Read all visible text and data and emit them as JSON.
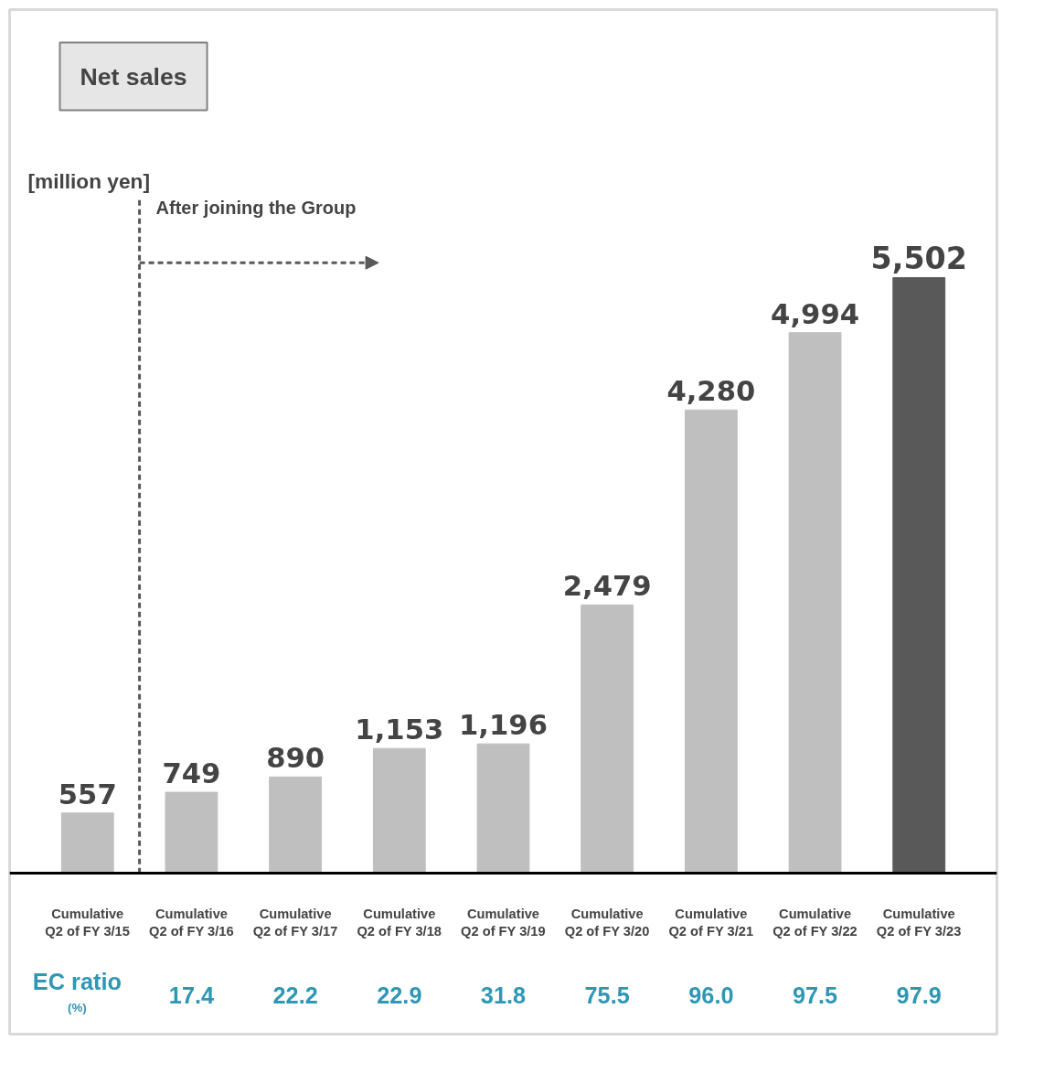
{
  "chart_data": {
    "type": "bar",
    "title": "Net sales",
    "categories": [
      "Cumulative\nQ2 of FY 3/15",
      "Cumulative\nQ2 of FY 3/16",
      "Cumulative\nQ2 of FY 3/17",
      "Cumulative\nQ2 of FY 3/18",
      "Cumulative\nQ2 of FY 3/19",
      "Cumulative\nQ2 of FY 3/20",
      "Cumulative\nQ2 of FY 3/21",
      "Cumulative\nQ2 of FY 3/22",
      "Cumulative\nQ2 of FY 3/23"
    ],
    "values": [
      557,
      749,
      890,
      1153,
      1196,
      2479,
      4280,
      4994,
      5502
    ],
    "colors": [
      "#bfbfbf",
      "#bfbfbf",
      "#bfbfbf",
      "#bfbfbf",
      "#bfbfbf",
      "#bfbfbf",
      "#bfbfbf",
      "#bfbfbf",
      "#595959"
    ],
    "value_labels": [
      "557",
      "749",
      "890",
      "1,153",
      "1,196",
      "2,479",
      "4,280",
      "4,994",
      "5,502"
    ],
    "annotations": [
      "[million yen]",
      "After joining the Group",
      "EC ratio",
      "(%)",
      "17.4",
      "22.2",
      "22.9",
      "31.8",
      "75.5",
      "96.0",
      "97.5",
      "97.9"
    ],
    "grid": false
  }
}
